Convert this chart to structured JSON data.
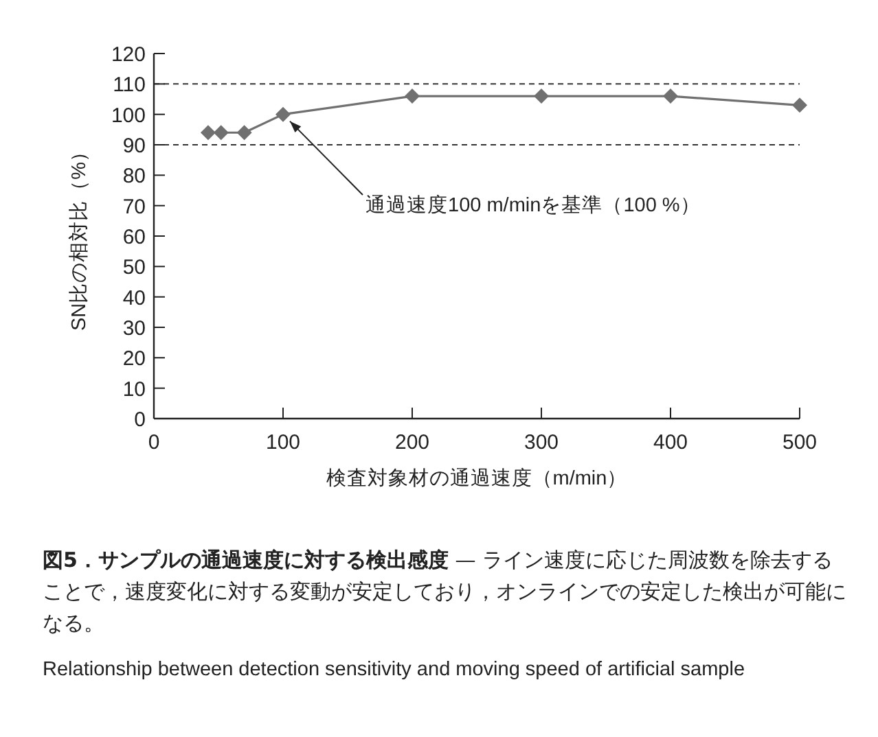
{
  "chart_data": {
    "type": "line",
    "title": "図5．サンプルの通過速度に対する検出感度",
    "subtitle": "— ライン速度に応じた周波数を除去することで，速度変化に対する変動が安定しており，オンラインでの安定した検出が可能になる。",
    "xlabel": "検査対象材の通過速度（m/min）",
    "ylabel": "SN比の相対比（%）",
    "x": [
      42,
      52,
      70,
      100,
      200,
      300,
      400,
      500
    ],
    "series": [
      {
        "color": "#707070",
        "values": [
          94,
          94,
          94,
          100,
          106,
          106,
          106,
          103
        ]
      }
    ],
    "marker": "diamond",
    "line_style": "solid",
    "xlim": [
      0,
      500
    ],
    "xticks": [
      0,
      100,
      200,
      300,
      400,
      500
    ],
    "ylim": [
      0,
      120
    ],
    "yticks": [
      0,
      10,
      20,
      30,
      40,
      50,
      60,
      70,
      80,
      90,
      100,
      110,
      120
    ],
    "ref_lines": [
      {
        "axis": "y",
        "value": 110,
        "color": "#333333",
        "line_style": "dashed"
      },
      {
        "axis": "y",
        "value": 90,
        "color": "#333333",
        "line_style": "dashed"
      }
    ],
    "annotations": [
      {
        "text": "通過速度100 m/minを基準（100 %）",
        "x": 100,
        "y": 100
      },
      "Relationship between detection sensitivity and moving speed of artificial sample"
    ],
    "grid": false
  }
}
